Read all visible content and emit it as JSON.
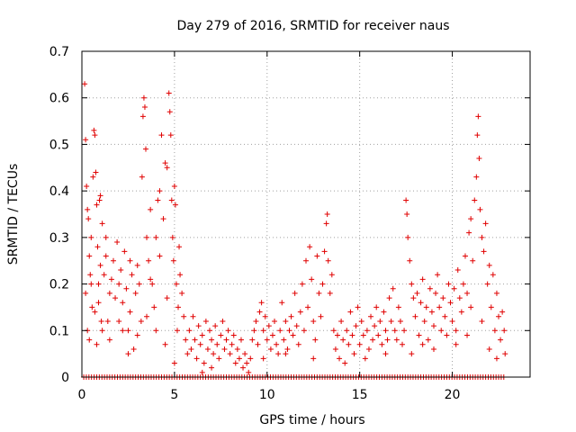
{
  "chart_data": {
    "type": "scatter",
    "title": "Day 279 of 2016, SRMTID for receiver naus",
    "xlabel": "GPS time / hours",
    "ylabel": "SRMTID / TECUs",
    "xlim": [
      0,
      24.2
    ],
    "ylim": [
      0,
      0.7
    ],
    "xticks": [
      0,
      5,
      10,
      15,
      20
    ],
    "xtick_labels": [
      "0",
      "5",
      "10",
      "15",
      "20"
    ],
    "yticks": [
      0,
      0.1,
      0.2,
      0.3,
      0.4,
      0.5,
      0.6,
      0.7
    ],
    "ytick_labels": [
      "0",
      "0.1",
      "0.2",
      "0.3",
      "0.4",
      "0.5",
      "0.6",
      "0.7"
    ],
    "grid": true,
    "marker": "+",
    "series_color": "#e00000",
    "series": [
      {
        "name": "SRMTID",
        "points": [
          [
            0.15,
            0.63
          ],
          [
            0.2,
            0.51
          ],
          [
            0.25,
            0.41
          ],
          [
            0.3,
            0.36
          ],
          [
            0.35,
            0.34
          ],
          [
            0.4,
            0.26
          ],
          [
            0.45,
            0.22
          ],
          [
            0.5,
            0.3
          ],
          [
            0.55,
            0.15
          ],
          [
            0.6,
            0.43
          ],
          [
            0.65,
            0.53
          ],
          [
            0.7,
            0.52
          ],
          [
            0.75,
            0.44
          ],
          [
            0.8,
            0.37
          ],
          [
            0.85,
            0.28
          ],
          [
            0.9,
            0.2
          ],
          [
            0.95,
            0.38
          ],
          [
            1.0,
            0.39
          ],
          [
            1.05,
            0.12
          ],
          [
            1.1,
            0.1
          ],
          [
            0.2,
            0.18
          ],
          [
            0.3,
            0.1
          ],
          [
            0.4,
            0.08
          ],
          [
            0.5,
            0.2
          ],
          [
            0.7,
            0.14
          ],
          [
            0.8,
            0.07
          ],
          [
            0.9,
            0.16
          ],
          [
            1.0,
            0.24
          ],
          [
            1.2,
            0.22
          ],
          [
            1.3,
            0.26
          ],
          [
            1.4,
            0.12
          ],
          [
            1.5,
            0.18
          ],
          [
            1.6,
            0.21
          ],
          [
            1.7,
            0.25
          ],
          [
            1.8,
            0.17
          ],
          [
            1.9,
            0.29
          ],
          [
            2.0,
            0.2
          ],
          [
            2.1,
            0.23
          ],
          [
            2.2,
            0.16
          ],
          [
            2.3,
            0.27
          ],
          [
            2.4,
            0.19
          ],
          [
            2.5,
            0.1
          ],
          [
            2.6,
            0.14
          ],
          [
            2.7,
            0.22
          ],
          [
            2.8,
            0.06
          ],
          [
            2.9,
            0.18
          ],
          [
            3.0,
            0.24
          ],
          [
            3.1,
            0.2
          ],
          [
            3.2,
            0.12
          ],
          [
            3.25,
            0.43
          ],
          [
            3.3,
            0.56
          ],
          [
            3.35,
            0.6
          ],
          [
            3.4,
            0.58
          ],
          [
            3.45,
            0.49
          ],
          [
            3.5,
            0.3
          ],
          [
            3.6,
            0.25
          ],
          [
            3.7,
            0.36
          ],
          [
            3.8,
            0.2
          ],
          [
            3.9,
            0.15
          ],
          [
            4.0,
            0.3
          ],
          [
            4.1,
            0.38
          ],
          [
            4.2,
            0.4
          ],
          [
            4.3,
            0.52
          ],
          [
            4.4,
            0.34
          ],
          [
            4.5,
            0.46
          ],
          [
            4.6,
            0.45
          ],
          [
            4.7,
            0.61
          ],
          [
            4.75,
            0.57
          ],
          [
            4.8,
            0.52
          ],
          [
            4.85,
            0.38
          ],
          [
            4.9,
            0.3
          ],
          [
            4.95,
            0.25
          ],
          [
            5.0,
            0.41
          ],
          [
            5.05,
            0.37
          ],
          [
            5.1,
            0.2
          ],
          [
            5.15,
            0.1
          ],
          [
            5.2,
            0.15
          ],
          [
            5.25,
            0.28
          ],
          [
            5.3,
            0.22
          ],
          [
            5.4,
            0.18
          ],
          [
            5.5,
            0.13
          ],
          [
            5.6,
            0.08
          ],
          [
            5.7,
            0.05
          ],
          [
            1.5,
            0.08
          ],
          [
            2.0,
            0.12
          ],
          [
            2.5,
            0.05
          ],
          [
            3.0,
            0.09
          ],
          [
            3.5,
            0.13
          ],
          [
            4.0,
            0.1
          ],
          [
            4.5,
            0.07
          ],
          [
            5.0,
            0.03
          ],
          [
            1.1,
            0.33
          ],
          [
            1.3,
            0.3
          ],
          [
            2.2,
            0.1
          ],
          [
            2.6,
            0.25
          ],
          [
            3.7,
            0.21
          ],
          [
            4.2,
            0.26
          ],
          [
            4.6,
            0.17
          ],
          [
            5.8,
            0.1
          ],
          [
            5.9,
            0.06
          ],
          [
            6.0,
            0.13
          ],
          [
            6.1,
            0.08
          ],
          [
            6.2,
            0.04
          ],
          [
            6.3,
            0.11
          ],
          [
            6.4,
            0.07
          ],
          [
            6.5,
            0.09
          ],
          [
            6.6,
            0.03
          ],
          [
            6.7,
            0.12
          ],
          [
            6.8,
            0.06
          ],
          [
            6.9,
            0.1
          ],
          [
            7.0,
            0.08
          ],
          [
            7.1,
            0.05
          ],
          [
            7.2,
            0.11
          ],
          [
            7.3,
            0.07
          ],
          [
            7.4,
            0.04
          ],
          [
            7.5,
            0.09
          ],
          [
            7.6,
            0.12
          ],
          [
            7.7,
            0.06
          ],
          [
            7.8,
            0.08
          ],
          [
            7.9,
            0.1
          ],
          [
            8.0,
            0.05
          ],
          [
            8.1,
            0.07
          ],
          [
            8.2,
            0.09
          ],
          [
            8.3,
            0.03
          ],
          [
            8.4,
            0.06
          ],
          [
            8.5,
            0.04
          ],
          [
            8.6,
            0.08
          ],
          [
            8.7,
            0.02
          ],
          [
            8.8,
            0.05
          ],
          [
            8.9,
            0.03
          ],
          [
            9.0,
            0.01
          ],
          [
            9.1,
            0.04
          ],
          [
            9.2,
            0.08
          ],
          [
            9.3,
            0.1
          ],
          [
            9.4,
            0.12
          ],
          [
            9.5,
            0.07
          ],
          [
            9.6,
            0.14
          ],
          [
            9.7,
            0.16
          ],
          [
            9.8,
            0.1
          ],
          [
            9.9,
            0.13
          ],
          [
            10.0,
            0.08
          ],
          [
            10.1,
            0.11
          ],
          [
            10.2,
            0.06
          ],
          [
            10.3,
            0.09
          ],
          [
            10.4,
            0.12
          ],
          [
            10.5,
            0.07
          ],
          [
            10.6,
            0.05
          ],
          [
            10.7,
            0.1
          ],
          [
            10.8,
            0.16
          ],
          [
            10.9,
            0.08
          ],
          [
            11.0,
            0.12
          ],
          [
            11.1,
            0.06
          ],
          [
            11.2,
            0.1
          ],
          [
            11.3,
            0.13
          ],
          [
            11.4,
            0.09
          ],
          [
            11.5,
            0.18
          ],
          [
            11.6,
            0.11
          ],
          [
            11.7,
            0.07
          ],
          [
            11.8,
            0.14
          ],
          [
            11.9,
            0.2
          ],
          [
            12.0,
            0.1
          ],
          [
            12.1,
            0.25
          ],
          [
            12.2,
            0.15
          ],
          [
            12.3,
            0.28
          ],
          [
            12.4,
            0.21
          ],
          [
            12.5,
            0.12
          ],
          [
            12.6,
            0.08
          ],
          [
            12.7,
            0.26
          ],
          [
            12.8,
            0.18
          ],
          [
            12.9,
            0.13
          ],
          [
            13.0,
            0.2
          ],
          [
            13.1,
            0.27
          ],
          [
            13.2,
            0.33
          ],
          [
            13.25,
            0.35
          ],
          [
            13.3,
            0.25
          ],
          [
            13.4,
            0.18
          ],
          [
            13.5,
            0.22
          ],
          [
            13.6,
            0.1
          ],
          [
            13.7,
            0.06
          ],
          [
            13.8,
            0.09
          ],
          [
            13.9,
            0.04
          ],
          [
            14.0,
            0.12
          ],
          [
            14.1,
            0.08
          ],
          [
            14.2,
            0.03
          ],
          [
            14.3,
            0.1
          ],
          [
            14.4,
            0.07
          ],
          [
            14.5,
            0.14
          ],
          [
            14.6,
            0.09
          ],
          [
            14.7,
            0.05
          ],
          [
            14.8,
            0.11
          ],
          [
            14.9,
            0.15
          ],
          [
            15.0,
            0.07
          ],
          [
            15.1,
            0.12
          ],
          [
            15.2,
            0.09
          ],
          [
            15.3,
            0.04
          ],
          [
            15.4,
            0.1
          ],
          [
            15.5,
            0.06
          ],
          [
            15.6,
            0.13
          ],
          [
            15.7,
            0.08
          ],
          [
            15.8,
            0.11
          ],
          [
            15.9,
            0.15
          ],
          [
            16.0,
            0.09
          ],
          [
            16.1,
            0.12
          ],
          [
            16.2,
            0.07
          ],
          [
            16.3,
            0.14
          ],
          [
            16.4,
            0.1
          ],
          [
            16.5,
            0.08
          ],
          [
            16.6,
            0.17
          ],
          [
            16.7,
            0.12
          ],
          [
            16.8,
            0.19
          ],
          [
            16.9,
            0.1
          ],
          [
            17.0,
            0.08
          ],
          [
            17.1,
            0.15
          ],
          [
            17.2,
            0.12
          ],
          [
            17.3,
            0.07
          ],
          [
            17.4,
            0.1
          ],
          [
            17.5,
            0.38
          ],
          [
            17.55,
            0.35
          ],
          [
            17.6,
            0.3
          ],
          [
            17.7,
            0.25
          ],
          [
            17.8,
            0.2
          ],
          [
            17.9,
            0.17
          ],
          [
            18.0,
            0.13
          ],
          [
            18.1,
            0.18
          ],
          [
            18.2,
            0.09
          ],
          [
            18.3,
            0.16
          ],
          [
            18.4,
            0.21
          ],
          [
            18.5,
            0.12
          ],
          [
            18.6,
            0.15
          ],
          [
            18.7,
            0.08
          ],
          [
            18.8,
            0.19
          ],
          [
            18.9,
            0.14
          ],
          [
            19.0,
            0.11
          ],
          [
            19.1,
            0.18
          ],
          [
            19.2,
            0.22
          ],
          [
            19.3,
            0.15
          ],
          [
            19.4,
            0.1
          ],
          [
            19.5,
            0.17
          ],
          [
            19.6,
            0.13
          ],
          [
            19.7,
            0.09
          ],
          [
            19.8,
            0.2
          ],
          [
            19.9,
            0.16
          ],
          [
            20.0,
            0.12
          ],
          [
            20.1,
            0.19
          ],
          [
            20.2,
            0.1
          ],
          [
            20.3,
            0.23
          ],
          [
            20.4,
            0.17
          ],
          [
            20.5,
            0.14
          ],
          [
            20.6,
            0.2
          ],
          [
            20.7,
            0.26
          ],
          [
            20.8,
            0.18
          ],
          [
            20.9,
            0.31
          ],
          [
            21.0,
            0.34
          ],
          [
            21.1,
            0.25
          ],
          [
            21.2,
            0.38
          ],
          [
            21.3,
            0.43
          ],
          [
            21.35,
            0.52
          ],
          [
            21.4,
            0.56
          ],
          [
            21.45,
            0.47
          ],
          [
            21.5,
            0.36
          ],
          [
            21.6,
            0.3
          ],
          [
            21.7,
            0.27
          ],
          [
            21.8,
            0.33
          ],
          [
            21.9,
            0.2
          ],
          [
            22.0,
            0.24
          ],
          [
            22.1,
            0.15
          ],
          [
            22.2,
            0.22
          ],
          [
            22.3,
            0.1
          ],
          [
            22.4,
            0.18
          ],
          [
            22.5,
            0.13
          ],
          [
            22.6,
            0.08
          ],
          [
            22.7,
            0.14
          ],
          [
            22.8,
            0.1
          ],
          [
            22.85,
            0.05
          ],
          [
            20.2,
            0.07
          ],
          [
            20.8,
            0.09
          ],
          [
            21.0,
            0.15
          ],
          [
            21.6,
            0.12
          ],
          [
            22.0,
            0.06
          ],
          [
            22.4,
            0.04
          ],
          [
            17.8,
            0.05
          ],
          [
            18.4,
            0.07
          ],
          [
            19.0,
            0.06
          ],
          [
            16.4,
            0.05
          ],
          [
            12.5,
            0.04
          ],
          [
            11.0,
            0.05
          ],
          [
            9.8,
            0.04
          ],
          [
            7.0,
            0.02
          ],
          [
            6.5,
            0.01
          ]
        ]
      }
    ],
    "zero_points_x_range": [
      0.1,
      22.9
    ],
    "zero_points_step": 0.14
  }
}
